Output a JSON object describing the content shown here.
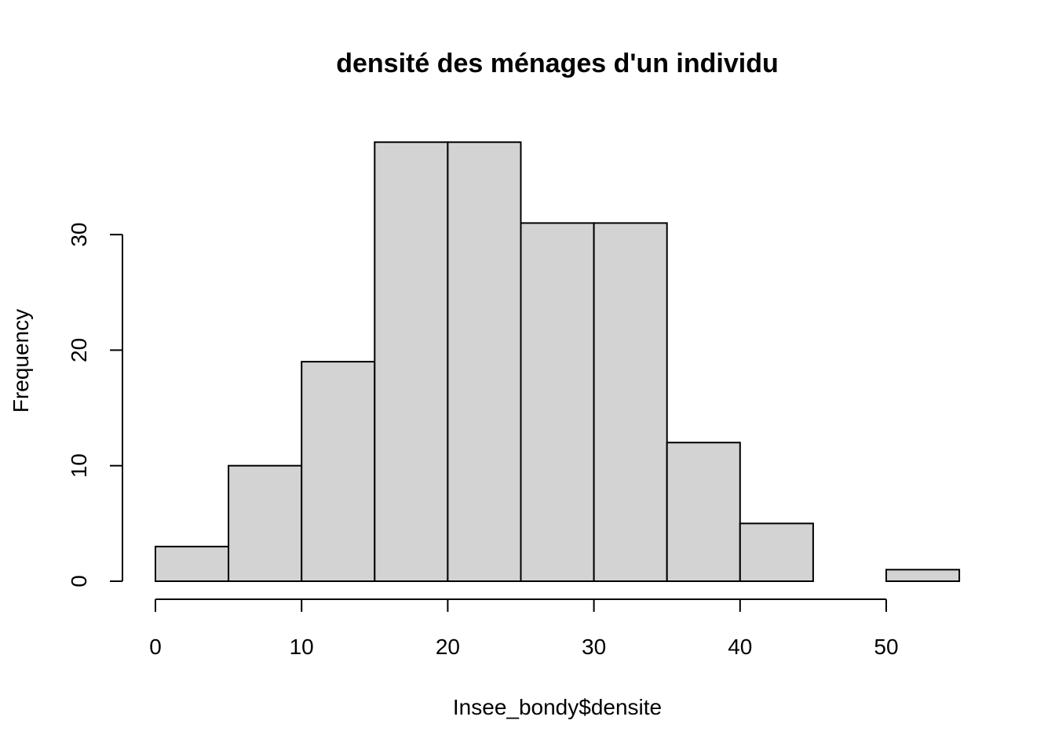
{
  "chart_data": {
    "type": "bar",
    "title": "densité des ménages d'un individu",
    "xlabel": "Insee_bondy$densite",
    "ylabel": "Frequency",
    "bins": [
      {
        "x0": 0,
        "x1": 5,
        "count": 3
      },
      {
        "x0": 5,
        "x1": 10,
        "count": 10
      },
      {
        "x0": 10,
        "x1": 15,
        "count": 19
      },
      {
        "x0": 15,
        "x1": 20,
        "count": 38
      },
      {
        "x0": 20,
        "x1": 25,
        "count": 38
      },
      {
        "x0": 25,
        "x1": 30,
        "count": 31
      },
      {
        "x0": 30,
        "x1": 35,
        "count": 31
      },
      {
        "x0": 35,
        "x1": 40,
        "count": 12
      },
      {
        "x0": 40,
        "x1": 45,
        "count": 5
      },
      {
        "x0": 45,
        "x1": 50,
        "count": 0
      },
      {
        "x0": 50,
        "x1": 55,
        "count": 1
      }
    ],
    "xticks": [
      "0",
      "10",
      "20",
      "30",
      "40",
      "50"
    ],
    "yticks": [
      "0",
      "10",
      "20",
      "30"
    ],
    "xlim": [
      0,
      55
    ],
    "ylim": [
      0,
      38
    ],
    "grid": false,
    "legend": false,
    "bar_color": "#d3d3d3",
    "edge_color": "#000000"
  }
}
